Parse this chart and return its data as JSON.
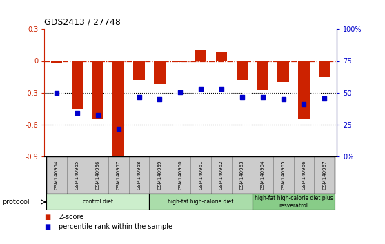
{
  "title": "GDS2413 / 27748",
  "samples": [
    "GSM140954",
    "GSM140955",
    "GSM140956",
    "GSM140957",
    "GSM140958",
    "GSM140959",
    "GSM140960",
    "GSM140961",
    "GSM140962",
    "GSM140963",
    "GSM140964",
    "GSM140965",
    "GSM140966",
    "GSM140967"
  ],
  "zscore": [
    -0.02,
    -0.45,
    -0.55,
    -0.93,
    -0.18,
    -0.22,
    -0.01,
    0.1,
    0.08,
    -0.18,
    -0.28,
    -0.2,
    -0.55,
    -0.15
  ],
  "percentile_left": [
    -0.3,
    -0.49,
    -0.51,
    -0.64,
    -0.345,
    -0.365,
    -0.295,
    -0.265,
    -0.265,
    -0.345,
    -0.345,
    -0.36,
    -0.41,
    -0.355
  ],
  "zscore_color": "#cc2200",
  "percentile_color": "#0000cc",
  "ylim_left": [
    -0.9,
    0.3
  ],
  "ylim_right": [
    0,
    100
  ],
  "yticks_left": [
    -0.9,
    -0.6,
    -0.3,
    0.0,
    0.3
  ],
  "yticks_right": [
    0,
    25,
    50,
    75,
    100
  ],
  "ytick_labels_left": [
    "-0.9",
    "-0.6",
    "-0.3",
    "0",
    "0.3"
  ],
  "ytick_labels_right": [
    "0%",
    "25",
    "50",
    "75",
    "100%"
  ],
  "dotted_lines": [
    -0.3,
    -0.6
  ],
  "groups": [
    {
      "label": "control diet",
      "start": 0,
      "end": 4,
      "color": "#cceecc"
    },
    {
      "label": "high-fat high-calorie diet",
      "start": 5,
      "end": 9,
      "color": "#aaddaa"
    },
    {
      "label": "high-fat high-calorie diet plus\nresveratrol",
      "start": 10,
      "end": 13,
      "color": "#88cc88"
    }
  ],
  "protocol_label": "protocol",
  "legend_items": [
    {
      "label": "Z-score",
      "color": "#cc2200"
    },
    {
      "label": "percentile rank within the sample",
      "color": "#0000cc"
    }
  ],
  "bar_width": 0.55,
  "sample_box_color": "#cccccc",
  "n_samples": 14
}
